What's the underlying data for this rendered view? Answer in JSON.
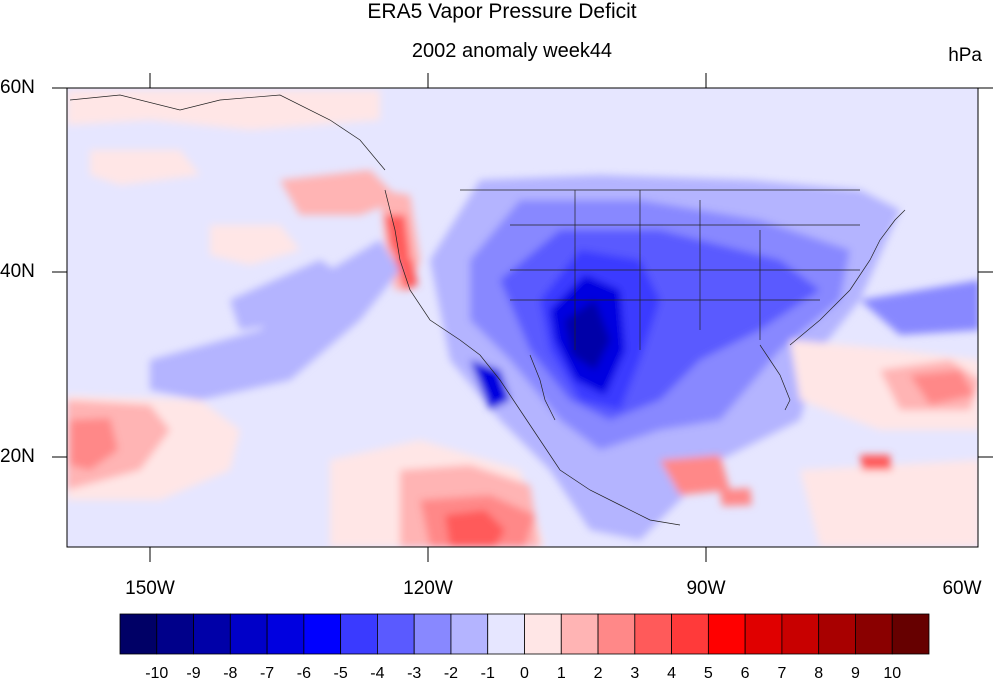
{
  "title": "ERA5 Vapor Pressure Deficit",
  "subtitle": "2002 anomaly week44",
  "units": "hPa",
  "lat_labels": [
    "60N",
    "40N",
    "20N"
  ],
  "lon_labels": [
    "150W",
    "120W",
    "90W",
    "60W"
  ],
  "colorbar": {
    "labels": [
      "-10",
      "-9",
      "-8",
      "-7",
      "-6",
      "-5",
      "-4",
      "-3",
      "-2",
      "-1",
      "0",
      "1",
      "2",
      "3",
      "4",
      "5",
      "6",
      "7",
      "8",
      "9",
      "10"
    ],
    "colors": [
      "#000066",
      "#00008a",
      "#0000a8",
      "#0000c8",
      "#0000e0",
      "#0000ff",
      "#3a3aff",
      "#5a5aff",
      "#8888ff",
      "#b4b4ff",
      "#e6e6ff",
      "#ffe6e6",
      "#ffb4b4",
      "#ff8888",
      "#ff5a5a",
      "#ff3a3a",
      "#ff0000",
      "#e00000",
      "#c80000",
      "#a80000",
      "#8a0000",
      "#660000"
    ]
  },
  "map": {
    "region": "North America and eastern Pacific",
    "extent": {
      "lon": [
        -160,
        -60
      ],
      "lat": [
        10,
        60
      ]
    },
    "background_color": "#e6e6ff"
  }
}
